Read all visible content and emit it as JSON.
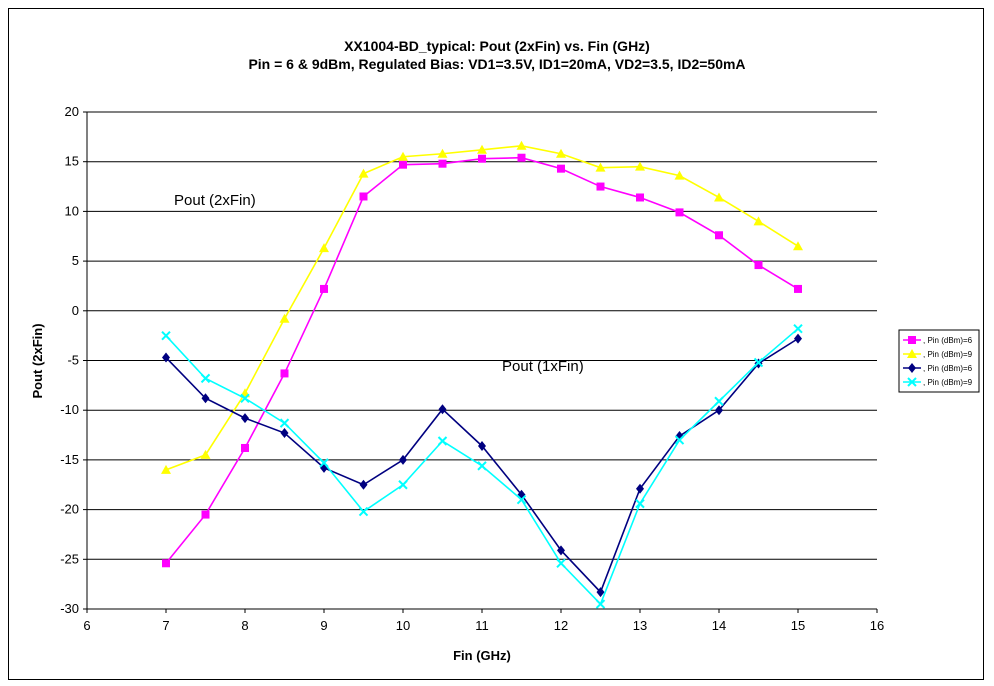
{
  "chart_data": {
    "type": "line",
    "title": "XX1004-BD_typical: Pout (2xFin) vs. Fin (GHz)",
    "subtitle": "Pin = 6 & 9dBm, Regulated Bias: VD1=3.5V, ID1=20mA, VD2=3.5, ID2=50mA",
    "xlabel": "Fin (GHz)",
    "ylabel": "Pout (2xFin)",
    "xlim": [
      6,
      16
    ],
    "ylim": [
      -30,
      20
    ],
    "xticks": [
      "6",
      "7",
      "8",
      "9",
      "10",
      "11",
      "12",
      "13",
      "14",
      "15",
      "16"
    ],
    "yticks": [
      "20",
      "15",
      "10",
      "5",
      "0",
      "-5",
      "-10",
      "-15",
      "-20",
      "-25",
      "-30"
    ],
    "grid": "horizontal",
    "legend_position": "right",
    "annotations": [
      "Pout (2xFin)",
      "Pout (1xFin)"
    ],
    "x": [
      7,
      7.5,
      8,
      8.5,
      9,
      9.5,
      10,
      10.5,
      11,
      11.5,
      12,
      12.5,
      13,
      13.5,
      14,
      14.5,
      15
    ],
    "series": [
      {
        "name": ", Pin (dBm)=6",
        "color": "#ff00ff",
        "marker": "square",
        "values": [
          -25.4,
          -20.5,
          -13.8,
          -6.3,
          2.2,
          11.5,
          14.7,
          14.8,
          15.3,
          15.4,
          14.3,
          12.5,
          11.4,
          9.9,
          7.6,
          4.6,
          2.2
        ]
      },
      {
        "name": ", Pin (dBm)=9",
        "color": "#ffff00",
        "marker": "triangle",
        "values": [
          -16.0,
          -14.5,
          -8.3,
          -0.8,
          6.3,
          13.8,
          15.5,
          15.8,
          16.2,
          16.6,
          15.8,
          14.4,
          14.5,
          13.6,
          11.4,
          9.0,
          6.5
        ]
      },
      {
        "name": ", Pin (dBm)=6",
        "color": "#000080",
        "marker": "diamond",
        "values": [
          -4.7,
          -8.8,
          -10.8,
          -12.3,
          -15.8,
          -17.5,
          -15.0,
          -9.9,
          -13.6,
          -18.5,
          -24.1,
          -28.3,
          -17.9,
          -12.6,
          -10.0,
          -5.3,
          -2.8
        ]
      },
      {
        "name": ", Pin (dBm)=9",
        "color": "#00ffff",
        "marker": "x",
        "values": [
          -2.5,
          -6.8,
          -8.8,
          -11.3,
          -15.3,
          -20.2,
          -17.5,
          -13.1,
          -15.6,
          -19.0,
          -25.4,
          -29.5,
          -19.4,
          -13.0,
          -9.1,
          -5.2,
          -1.8
        ]
      }
    ]
  }
}
